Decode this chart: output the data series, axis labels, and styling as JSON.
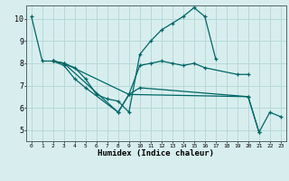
{
  "xlabel": "Humidex (Indice chaleur)",
  "background_color": "#d8eeee",
  "line_color": "#006666",
  "grid_color": "#b8d8d8",
  "xlim": [
    -0.5,
    23.5
  ],
  "ylim": [
    4.5,
    10.6
  ],
  "xticks": [
    0,
    1,
    2,
    3,
    4,
    5,
    6,
    7,
    8,
    9,
    10,
    11,
    12,
    13,
    14,
    15,
    16,
    17,
    18,
    19,
    20,
    21,
    22,
    23
  ],
  "yticks": [
    5,
    6,
    7,
    8,
    9,
    10
  ],
  "series": [
    {
      "x": [
        0,
        1,
        2,
        3,
        4,
        5,
        6,
        7,
        8,
        9,
        10,
        11,
        12,
        13,
        14,
        15,
        16,
        17
      ],
      "y": [
        10.1,
        8.1,
        8.1,
        8.0,
        7.8,
        7.3,
        6.6,
        6.4,
        6.3,
        5.8,
        8.4,
        9.0,
        9.5,
        9.8,
        10.1,
        10.5,
        10.1,
        8.2
      ]
    },
    {
      "x": [
        2,
        3,
        9,
        10,
        11,
        12,
        13,
        14,
        15,
        16,
        19,
        20
      ],
      "y": [
        8.1,
        8.0,
        6.6,
        7.9,
        8.0,
        8.1,
        8.0,
        7.9,
        8.0,
        7.8,
        7.5,
        7.5
      ]
    },
    {
      "x": [
        2,
        3,
        4,
        5,
        8,
        9,
        20,
        21,
        22,
        23
      ],
      "y": [
        8.1,
        7.9,
        7.3,
        6.9,
        5.8,
        6.6,
        6.5,
        4.9,
        5.8,
        5.6
      ]
    },
    {
      "x": [
        2,
        3,
        8,
        9,
        10,
        20,
        21
      ],
      "y": [
        8.1,
        8.0,
        5.8,
        6.6,
        6.9,
        6.5,
        4.9
      ]
    }
  ]
}
